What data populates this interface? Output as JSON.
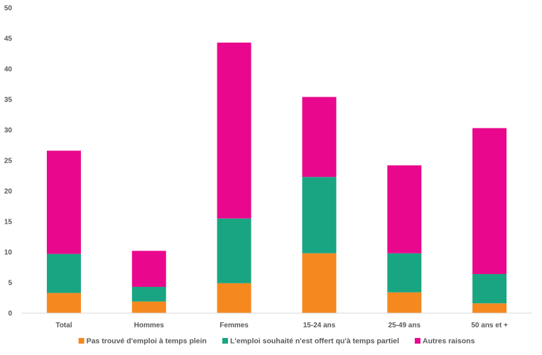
{
  "chart_data": {
    "type": "bar",
    "stacked": true,
    "title": "",
    "xlabel": "",
    "ylabel": "",
    "ylim": [
      0,
      50
    ],
    "yticks": [
      0,
      5,
      10,
      15,
      20,
      25,
      30,
      35,
      40,
      45,
      50
    ],
    "grid": false,
    "legend_position": "bottom",
    "categories": [
      "Total",
      "Hommes",
      "Femmes",
      "15-24 ans",
      "25-49 ans",
      "50 ans et +"
    ],
    "series": [
      {
        "name": "Pas trouvé d'emploi à temps plein",
        "color": "#F5891F",
        "values": [
          3.3,
          1.9,
          4.9,
          9.8,
          3.4,
          1.6
        ]
      },
      {
        "name": "L'emploi souhaité n'est offert qu'à temps partiel",
        "color": "#1AA582",
        "values": [
          6.4,
          2.4,
          10.6,
          12.5,
          6.4,
          4.8
        ]
      },
      {
        "name": "Autres raisons",
        "color": "#E9088D",
        "values": [
          16.9,
          5.9,
          28.8,
          13.1,
          14.4,
          23.9
        ]
      }
    ]
  }
}
